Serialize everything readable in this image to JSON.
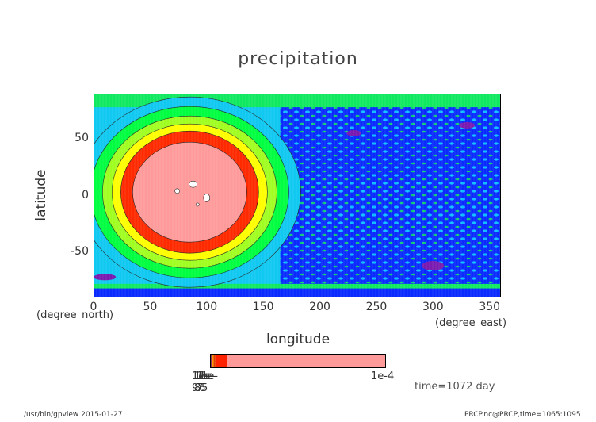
{
  "chart_data": {
    "type": "heatmap",
    "title": "precipitation",
    "xlabel": "longitude",
    "ylabel": "latitude",
    "x_unit": "(degree_east)",
    "y_unit": "(degree_north)",
    "xlim": [
      0,
      360
    ],
    "ylim": [
      -90,
      90
    ],
    "x_ticks": [
      "0",
      "50",
      "100",
      "150",
      "200",
      "250",
      "300",
      "350"
    ],
    "y_ticks": [
      "50",
      "0",
      "-50"
    ],
    "x_tick_values": [
      0,
      50,
      100,
      150,
      200,
      250,
      300,
      350
    ],
    "y_tick_values": [
      50,
      0,
      -50
    ],
    "colorbar": {
      "left_label": "1e-9",
      "overlapped_labels": [
        "1e-9",
        "1e-8",
        "1e-7",
        "1e-6",
        "1e-5"
      ],
      "right_label": "1e-4",
      "levels": [
        {
          "color": "#000000",
          "fraction": 0.005
        },
        {
          "color": "#8B2252",
          "fraction": 0.005
        },
        {
          "color": "#ff9900",
          "fraction": 0.01
        },
        {
          "color": "#e04000",
          "fraction": 0.01
        },
        {
          "color": "#ff2200",
          "fraction": 0.07
        },
        {
          "color": "#ff9a9a",
          "fraction": 0.9
        }
      ]
    },
    "palette": {
      "outer_ring": "#10c8f0",
      "ring_green": "#00ff40",
      "ring_lime": "#a0ff20",
      "ring_yellow": "#ffff00",
      "ring_red": "#ff2a00",
      "core_pink": "#ff9a9a",
      "blue": "#0a2aff",
      "cyan": "#10d8ff",
      "purple": "#7a1ab0",
      "green": "#10e860"
    },
    "time": "time=1072 day"
  },
  "footer": {
    "left": "/usr/bin/gpview  2015-01-27",
    "right": "PRCP.nc@PRCP,time=1065:1095"
  }
}
